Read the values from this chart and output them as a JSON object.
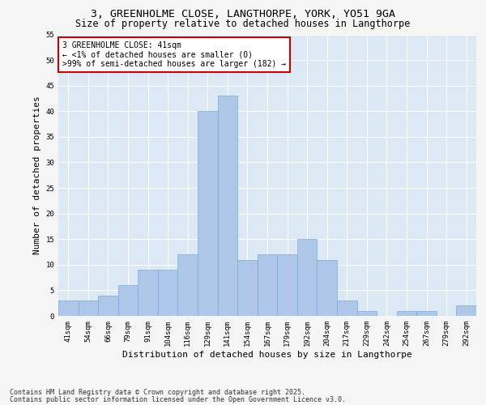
{
  "title_line1": "3, GREENHOLME CLOSE, LANGTHORPE, YORK, YO51 9GA",
  "title_line2": "Size of property relative to detached houses in Langthorpe",
  "xlabel": "Distribution of detached houses by size in Langthorpe",
  "ylabel": "Number of detached properties",
  "categories": [
    "41sqm",
    "54sqm",
    "66sqm",
    "79sqm",
    "91sqm",
    "104sqm",
    "116sqm",
    "129sqm",
    "141sqm",
    "154sqm",
    "167sqm",
    "179sqm",
    "192sqm",
    "204sqm",
    "217sqm",
    "229sqm",
    "242sqm",
    "254sqm",
    "267sqm",
    "279sqm",
    "292sqm"
  ],
  "values": [
    3,
    3,
    4,
    6,
    9,
    9,
    12,
    40,
    43,
    11,
    12,
    12,
    15,
    11,
    3,
    1,
    0,
    1,
    1,
    0,
    2
  ],
  "bar_color": "#aec6e8",
  "bar_edge_color": "#7aadd4",
  "annotation_box_text": "3 GREENHOLME CLOSE: 41sqm\n← <1% of detached houses are smaller (0)\n>99% of semi-detached houses are larger (182) →",
  "annotation_box_color": "#ffffff",
  "annotation_box_edge_color": "#cc0000",
  "ylim": [
    0,
    55
  ],
  "yticks": [
    0,
    5,
    10,
    15,
    20,
    25,
    30,
    35,
    40,
    45,
    50,
    55
  ],
  "background_color": "#dde8f5",
  "fig_background_color": "#f5f5f5",
  "grid_color": "#ffffff",
  "footer_line1": "Contains HM Land Registry data © Crown copyright and database right 2025.",
  "footer_line2": "Contains public sector information licensed under the Open Government Licence v3.0.",
  "title_fontsize": 9.5,
  "subtitle_fontsize": 8.5,
  "axis_label_fontsize": 8,
  "tick_fontsize": 6.5,
  "annotation_fontsize": 7,
  "footer_fontsize": 6
}
